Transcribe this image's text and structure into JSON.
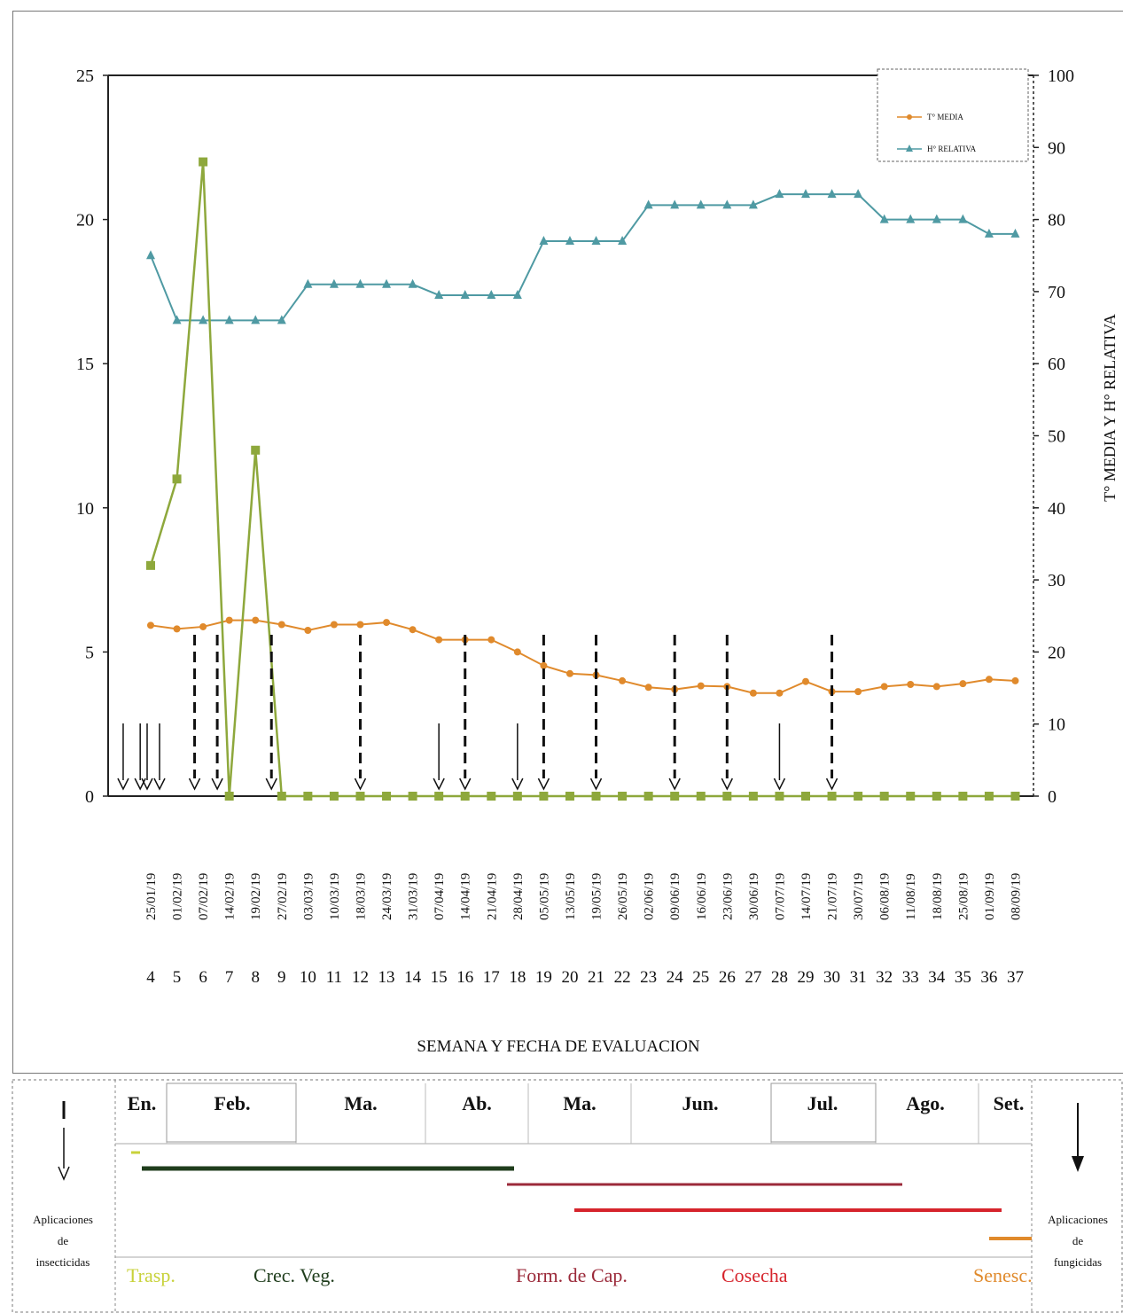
{
  "chart_data": {
    "type": "line",
    "xlabel": "SEMANA Y FECHA DE EVALUACION",
    "ylabel_right": "T° MEDIA Y H° RELATIVA",
    "ylim_left": [
      0,
      25
    ],
    "ylim_right": [
      0,
      100
    ],
    "yticks_left": [
      "0",
      "5",
      "10",
      "15",
      "20",
      "25"
    ],
    "yticks_right": [
      "0",
      "10",
      "20",
      "30",
      "40",
      "50",
      "60",
      "70",
      "80",
      "90",
      "100"
    ],
    "weeks": [
      "4",
      "5",
      "6",
      "7",
      "8",
      "9",
      "10",
      "11",
      "12",
      "13",
      "14",
      "15",
      "16",
      "17",
      "18",
      "19",
      "20",
      "21",
      "22",
      "23",
      "24",
      "25",
      "26",
      "27",
      "28",
      "29",
      "30",
      "31",
      "32",
      "33",
      "34",
      "35",
      "36",
      "37"
    ],
    "dates": [
      "25/01/19",
      "01/02/19",
      "07/02/19",
      "14/02/19",
      "19/02/19",
      "27/02/19",
      "03/03/19",
      "10/03/19",
      "18/03/19",
      "24/03/19",
      "31/03/19",
      "07/04/19",
      "14/04/19",
      "21/04/19",
      "28/04/19",
      "05/05/19",
      "13/05/19",
      "19/05/19",
      "26/05/19",
      "02/06/19",
      "09/06/19",
      "16/06/19",
      "23/06/19",
      "30/06/19",
      "07/07/19",
      "14/07/19",
      "21/07/19",
      "30/07/19",
      "06/08/19",
      "11/08/19",
      "18/08/19",
      "25/08/19",
      "01/09/19",
      "08/09/19"
    ],
    "legend": [
      "T° MEDIA",
      "H° RELATIVA"
    ],
    "series": [
      {
        "name": "T° MEDIA",
        "axis": "right",
        "color": "#e08a2c",
        "values": [
          23.7,
          23.2,
          23.5,
          24.4,
          24.4,
          23.8,
          23.0,
          23.8,
          23.8,
          24.1,
          23.1,
          21.7,
          21.7,
          21.7,
          20.0,
          18.1,
          17.0,
          16.8,
          16.0,
          15.1,
          14.8,
          15.3,
          15.2,
          14.3,
          14.3,
          15.9,
          14.5,
          14.5,
          15.2,
          15.5,
          15.2,
          15.6,
          16.2,
          16.0
        ]
      },
      {
        "name": "H° RELATIVA",
        "axis": "right",
        "color": "#4f9aa3",
        "values": [
          75,
          66,
          66,
          66,
          66,
          66,
          71,
          71,
          71,
          71,
          71,
          69.5,
          69.5,
          69.5,
          69.5,
          77,
          77,
          77,
          77,
          82,
          82,
          82,
          82,
          82,
          83.5,
          83.5,
          83.5,
          83.5,
          80,
          80,
          80,
          80,
          78,
          78
        ]
      },
      {
        "axis": "left",
        "color": "#8ea83c",
        "values": [
          8,
          11,
          22,
          0,
          12,
          0,
          0,
          0,
          0,
          0,
          0,
          0,
          0,
          0,
          0,
          0,
          0,
          0,
          0,
          0,
          0,
          0,
          0,
          0,
          0,
          0,
          0,
          0,
          0,
          0,
          0,
          0,
          0,
          0
        ]
      }
    ],
    "insecticide_weeks": [
      4,
      5,
      6,
      15,
      18,
      28
    ],
    "fungicide_weeks": [
      7,
      8,
      9,
      12,
      16,
      19,
      21,
      24,
      26,
      30
    ]
  },
  "calendar": {
    "months": [
      "En.",
      "Feb.",
      "Ma.",
      "Ab.",
      "Ma.",
      "Jun.",
      "Jul.",
      "Ago.",
      "Set."
    ],
    "phases": [
      {
        "label": "Trasp.",
        "suffix": ".",
        "color": "#c8d23a"
      },
      {
        "label": "Crec. Veg.",
        "color": "#1f3d1c"
      },
      {
        "label": "Form. de Cap.",
        "color": "#9b2a3a"
      },
      {
        "label": "Cosecha",
        "color": "#d6242c"
      },
      {
        "label": "Senesc.",
        "color": "#e08a2c"
      }
    ],
    "left_legend": {
      "line1": "Aplicaciones",
      "line2": "de",
      "line3": "insecticidas"
    },
    "right_legend": {
      "line1": "Aplicaciones",
      "line2": "de",
      "line3": "fungicidas"
    }
  }
}
